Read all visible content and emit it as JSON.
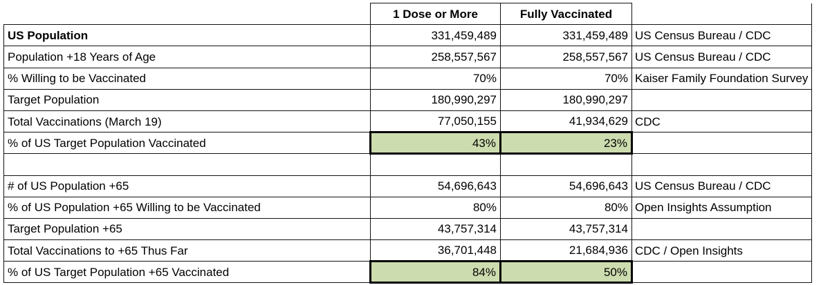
{
  "columns": {
    "dose1": "1 Dose or More",
    "full": "Fully Vaccinated"
  },
  "rows": [
    {
      "label": "US Population",
      "dose1": "331,459,489",
      "full": "331,459,489",
      "source": "US Census Bureau / CDC",
      "bold": true
    },
    {
      "label": "Population +18 Years of Age",
      "dose1": "258,557,567",
      "full": "258,557,567",
      "source": "US Census Bureau / CDC"
    },
    {
      "label": "% Willing to be Vaccinated",
      "dose1": "70%",
      "full": "70%",
      "source": "Kaiser Family Foundation Survey"
    },
    {
      "label": "Target Population",
      "dose1": "180,990,297",
      "full": "180,990,297",
      "source": ""
    },
    {
      "label": "Total Vaccinations (March 19)",
      "dose1": "77,050,155",
      "full": "41,934,629",
      "source": "CDC"
    },
    {
      "label": "% of US Target Population Vaccinated",
      "dose1": "43%",
      "full": "23%",
      "source": "",
      "highlight": true
    },
    {
      "label": "",
      "dose1": "",
      "full": "",
      "source": ""
    },
    {
      "label": "# of US Population +65",
      "dose1": "54,696,643",
      "full": "54,696,643",
      "source": "US Census Bureau / CDC"
    },
    {
      "label": "% of US Population +65 Willing to be Vaccinated",
      "dose1": "80%",
      "full": "80%",
      "source": "Open Insights Assumption"
    },
    {
      "label": "Target Population +65",
      "dose1": "43,757,314",
      "full": "43,757,314",
      "source": ""
    },
    {
      "label": "Total Vaccinations to +65 Thus Far",
      "dose1": "36,701,448",
      "full": "21,684,936",
      "source": "CDC / Open Insights"
    },
    {
      "label": "% of US Target Population +65 Vaccinated",
      "dose1": "84%",
      "full": "50%",
      "source": "",
      "highlight": true
    }
  ]
}
